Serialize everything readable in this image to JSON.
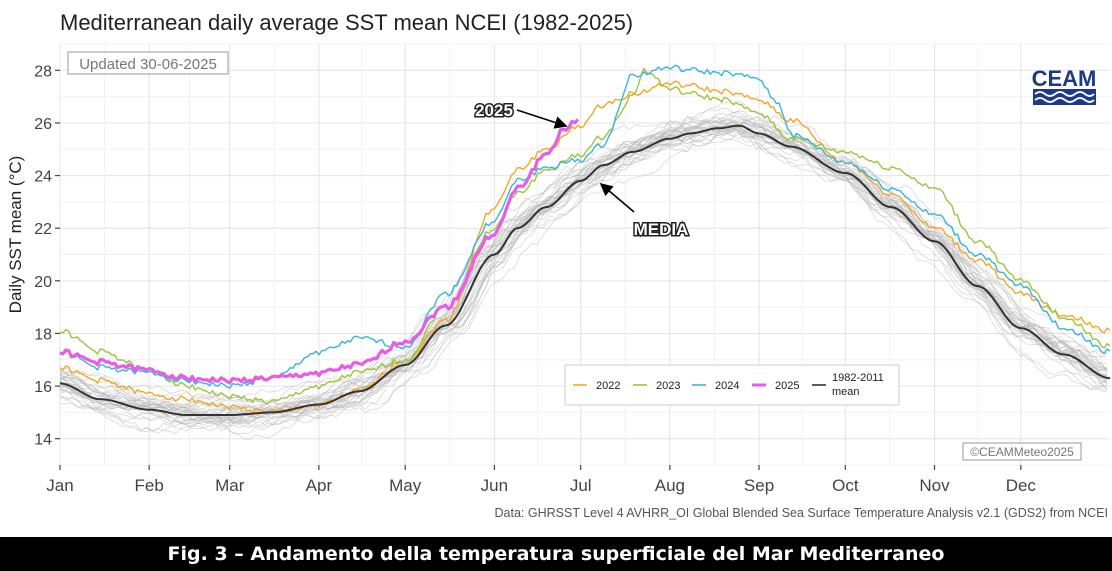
{
  "chart_data": {
    "type": "line",
    "title": "Mediterranean daily average SST mean NCEI (1982-2025)",
    "ylabel": "Daily SST mean (°C)",
    "xlabel": "",
    "ylim": [
      13,
      29
    ],
    "y_ticks": [
      14,
      16,
      18,
      20,
      22,
      24,
      26,
      28
    ],
    "x_ticks": [
      "Jan",
      "Feb",
      "Mar",
      "Apr",
      "May",
      "Jun",
      "Jul",
      "Aug",
      "Sep",
      "Oct",
      "Nov",
      "Dec"
    ],
    "x_tick_days": [
      1,
      32,
      60,
      91,
      121,
      152,
      182,
      213,
      244,
      274,
      305,
      335
    ],
    "x_range_days": [
      1,
      366
    ],
    "series": [
      {
        "name": "2022",
        "color": "#f5a623",
        "days": [
          1,
          15,
          32,
          45,
          60,
          75,
          91,
          105,
          121,
          135,
          152,
          160,
          170,
          182,
          190,
          200,
          213,
          220,
          230,
          244,
          255,
          274,
          290,
          305,
          320,
          335,
          350,
          366
        ],
        "values": [
          16.7,
          16.2,
          15.7,
          15.5,
          15.2,
          15.0,
          15.3,
          15.8,
          17.0,
          18.5,
          22.8,
          24.2,
          25.0,
          25.9,
          26.7,
          27.1,
          27.5,
          27.4,
          27.2,
          26.9,
          26.1,
          24.5,
          23.3,
          22.0,
          20.8,
          19.5,
          18.7,
          18.1
        ]
      },
      {
        "name": "2023",
        "color": "#9bc53d",
        "days": [
          1,
          15,
          32,
          45,
          60,
          75,
          91,
          105,
          121,
          135,
          152,
          160,
          170,
          182,
          190,
          200,
          204,
          213,
          220,
          230,
          244,
          255,
          274,
          290,
          305,
          320,
          335,
          350,
          366
        ],
        "values": [
          18.1,
          17.3,
          16.6,
          16.0,
          15.6,
          15.4,
          16.0,
          16.5,
          17.0,
          19.0,
          22.0,
          23.3,
          24.2,
          24.8,
          25.5,
          27.0,
          28.0,
          27.3,
          27.1,
          26.9,
          26.4,
          25.4,
          24.9,
          24.3,
          23.5,
          21.5,
          20.0,
          18.6,
          17.5
        ]
      },
      {
        "name": "2024",
        "color": "#3ab4dc",
        "days": [
          1,
          15,
          32,
          45,
          60,
          75,
          91,
          105,
          121,
          135,
          152,
          160,
          170,
          182,
          190,
          200,
          213,
          220,
          230,
          244,
          250,
          256,
          274,
          290,
          305,
          320,
          335,
          350,
          366
        ],
        "values": [
          17.3,
          16.7,
          16.5,
          16.2,
          16.0,
          16.3,
          17.3,
          17.8,
          17.5,
          19.5,
          22.3,
          23.8,
          24.3,
          24.6,
          25.2,
          27.8,
          28.1,
          28.0,
          27.9,
          27.7,
          26.8,
          25.5,
          24.5,
          23.5,
          22.5,
          21.0,
          19.8,
          18.2,
          17.3
        ]
      },
      {
        "name": "2025",
        "color": "#e85ce8",
        "days": [
          1,
          15,
          32,
          45,
          60,
          75,
          91,
          105,
          121,
          135,
          152,
          160,
          170,
          176,
          181
        ],
        "values": [
          17.3,
          16.9,
          16.6,
          16.3,
          16.2,
          16.3,
          16.5,
          16.8,
          17.7,
          19.0,
          21.8,
          23.5,
          24.8,
          25.7,
          26.1
        ]
      },
      {
        "name": "1982-2011 mean",
        "color": "#333333",
        "days": [
          1,
          15,
          32,
          45,
          60,
          75,
          91,
          105,
          121,
          135,
          152,
          160,
          170,
          182,
          190,
          200,
          213,
          220,
          230,
          237,
          244,
          255,
          274,
          290,
          305,
          320,
          335,
          350,
          366
        ],
        "values": [
          16.1,
          15.5,
          15.1,
          14.9,
          14.9,
          15.0,
          15.3,
          15.8,
          16.8,
          18.3,
          21.0,
          22.0,
          22.8,
          23.8,
          24.4,
          24.9,
          25.4,
          25.6,
          25.8,
          25.9,
          25.6,
          25.1,
          24.1,
          22.8,
          21.5,
          19.8,
          18.2,
          17.2,
          16.3
        ]
      }
    ],
    "legend": {
      "position": "bottom-right",
      "labels": [
        "2022",
        "2023",
        "2024",
        "2025",
        "1982-2011 mean"
      ]
    },
    "annotations": {
      "updated": "Updated 30-06-2025",
      "arrow_2025": "2025",
      "arrow_media": "MEDIA",
      "copyright": "©CEAMMeteo2025",
      "logo": "CEAM"
    },
    "grid": true
  },
  "source_note": "Data: GHRSST Level 4 AVHRR_OI Global Blended Sea Surface Temperature Analysis v2.1 (GDS2) from NCEI",
  "caption": "Fig. 3 – Andamento della temperatura superficiale del Mar Mediterraneo"
}
